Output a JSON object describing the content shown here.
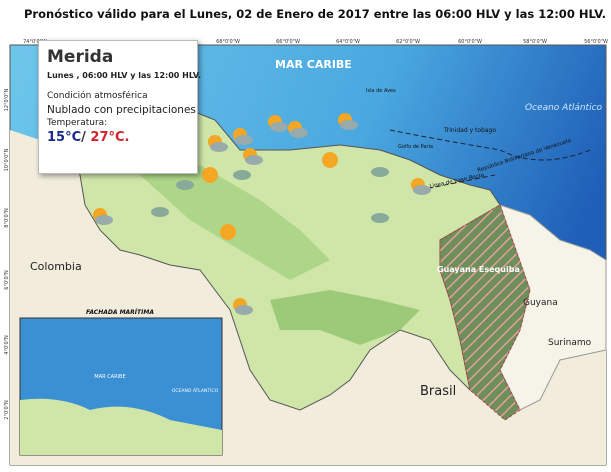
{
  "header": {
    "title": "Pronóstico válido para el Lunes, 02 de Enero de 2017 entre las 06:00 HLV y las 12:00 HLV."
  },
  "popup": {
    "city": "Merida",
    "period": "Lunes , 06:00 HLV y las 12:00 HLV.",
    "condition_label": "Condición atmosférica",
    "condition": "Nublado con precipitaciones",
    "temperature_label": "Temperatura:",
    "min": "15°C",
    "separator": "/",
    "max": "27°C."
  },
  "map": {
    "labels": {
      "sea": "MAR CARIBE",
      "ocean": "Oceano Atlántico",
      "colombia": "Colombia",
      "brasil": "Brasil",
      "guyana": "Guyana",
      "surinam": "Surinamo",
      "esequiba": "Guayana Esequiba",
      "trinidad": "Trinidad y tobago",
      "paria": "Golfo de Paria",
      "republic": "República Bolivariana de Venezuela",
      "baseline": "Linea de base Recta",
      "aves": "Isla de Aves"
    },
    "top_coords": [
      "74°0'0\"W",
      "68°0'0\"W",
      "66°0'0\"W",
      "64°0'0\"W",
      "62°0'0\"W",
      "60°0'0\"W",
      "58°0'0\"W",
      "56°0'0\"W"
    ],
    "left_coords": [
      "12°0'0\"N",
      "10°0'0\"N",
      "8°0'0\"N",
      "6°0'0\"N",
      "4°0'0\"N",
      "2°0'0\"N"
    ]
  },
  "inset": {
    "title": "FACHADA MARÍTIMA",
    "sea": "MAR CARIBE",
    "ocean": "OCEANO ATLANTICO"
  }
}
